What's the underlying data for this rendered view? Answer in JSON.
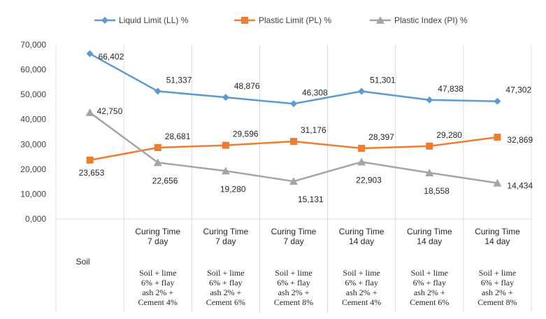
{
  "chart_data": {
    "type": "line",
    "title": "",
    "xlabel": "",
    "ylabel": "",
    "ylim": [
      0,
      70
    ],
    "yticks": [
      "0,000",
      "10,000",
      "20,000",
      "30,000",
      "40,000",
      "50,000",
      "60,000",
      "70,000"
    ],
    "ytick_values": [
      0,
      10,
      20,
      30,
      40,
      50,
      60,
      70
    ],
    "grid": "vertical category separators",
    "legend_position": "top",
    "categories": [
      {
        "top": [],
        "bottom": [
          "Soil"
        ]
      },
      {
        "top": [
          "Curing Time",
          "7 day"
        ],
        "bottom": [
          "Soil + lime",
          "6% + flay",
          "ash 2% +",
          "Cement 4%"
        ]
      },
      {
        "top": [
          "Curing Time",
          "7 day"
        ],
        "bottom": [
          "Soil + lime",
          "6% + flay",
          "ash 2% +",
          "Cement 6%"
        ]
      },
      {
        "top": [
          "Curing Time",
          "7 day"
        ],
        "bottom": [
          "Soil + lime",
          "6% + flay",
          "ash 2% +",
          "Cement 8%"
        ]
      },
      {
        "top": [
          "Curing Time",
          "14 day"
        ],
        "bottom": [
          "Soil + lime",
          "6% + flay",
          "ash 2% +",
          "Cement 4%"
        ]
      },
      {
        "top": [
          "Curing Time",
          "14 day"
        ],
        "bottom": [
          "Soil + lime",
          "6% + flay",
          "ash 2% +",
          "Cement 6%"
        ]
      },
      {
        "top": [
          "Curing Time",
          "14 day"
        ],
        "bottom": [
          "Soil + lime",
          "6% + flay",
          "ash 2% +",
          "Cement 8%"
        ]
      }
    ],
    "series": [
      {
        "name": "Liquid Limit  (LL) %",
        "color": "#5B9BD5",
        "marker": "diamond",
        "values": [
          66.402,
          51.337,
          48.876,
          46.308,
          51.301,
          47.838,
          47.302
        ],
        "labels": [
          "66,402",
          "51,337",
          "48,876",
          "46,308",
          "51,301",
          "47,838",
          "47,302"
        ]
      },
      {
        "name": "Plastic Limit  (PL) %",
        "color": "#ED7D31",
        "marker": "square",
        "values": [
          23.653,
          28.681,
          29.596,
          31.176,
          28.397,
          29.28,
          32.869
        ],
        "labels": [
          "23,653",
          "28,681",
          "29,596",
          "31,176",
          "28,397",
          "29,280",
          "32,869"
        ]
      },
      {
        "name": "Plastic Index  (PI) %",
        "color": "#A5A5A5",
        "marker": "triangle",
        "values": [
          42.75,
          22.656,
          19.28,
          15.131,
          22.903,
          18.558,
          14.434
        ],
        "labels": [
          "42,750",
          "22,656",
          "19,280",
          "15,131",
          "22,903",
          "18,558",
          "14,434"
        ]
      }
    ]
  }
}
